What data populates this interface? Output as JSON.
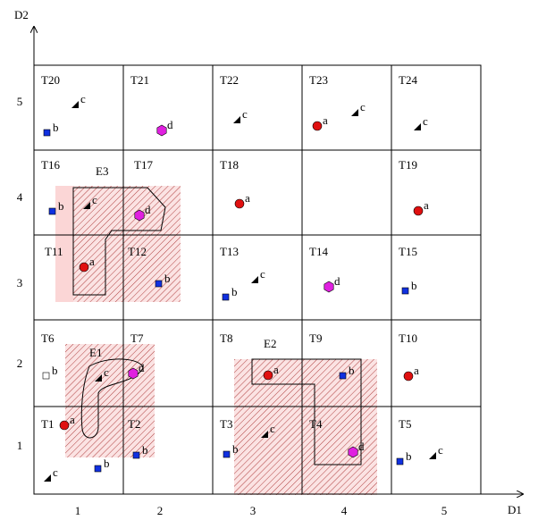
{
  "axes": {
    "x_title": "D1",
    "y_title": "D2",
    "x_ticks": [
      "1",
      "2",
      "3",
      "4",
      "5"
    ],
    "y_ticks": [
      "1",
      "2",
      "3",
      "4",
      "5"
    ]
  },
  "cells": [
    "T20",
    "T21",
    "T22",
    "T23",
    "T24",
    "T16",
    "T17",
    "T18",
    "T19",
    "T11",
    "T12",
    "T13",
    "T14",
    "T15",
    "T6",
    "T7",
    "T8",
    "T9",
    "T10",
    "T1",
    "T2",
    "T3",
    "T4",
    "T5"
  ],
  "regions": [
    "E3",
    "E1",
    "E2"
  ],
  "points": [
    "c",
    "b",
    "d",
    "c",
    "a",
    "c",
    "c",
    "b",
    "c",
    "d",
    "a",
    "a",
    "a",
    "b",
    "c",
    "b",
    "d",
    "b",
    "b",
    "c",
    "d",
    "a",
    "b",
    "a",
    "a",
    "b",
    "b",
    "c",
    "d",
    "b",
    "c",
    "c",
    "b"
  ]
}
